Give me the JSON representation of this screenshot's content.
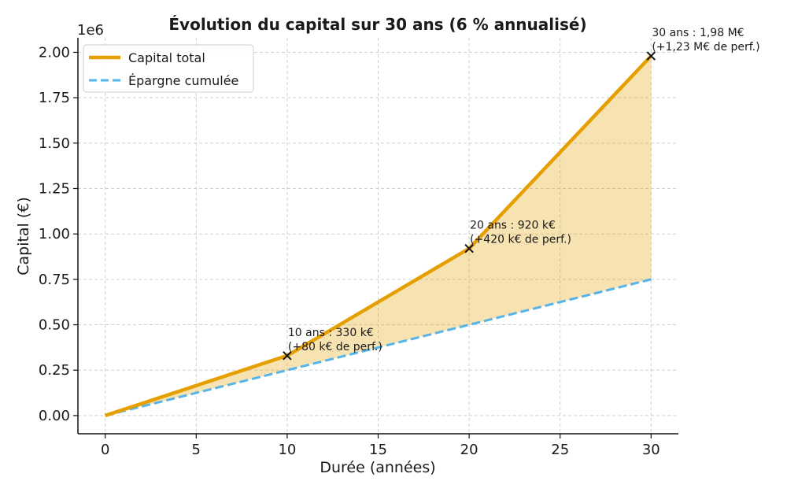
{
  "chart_data": {
    "type": "line",
    "title": "Évolution du capital sur 30 ans (6 % annualisé)",
    "xlabel": "Durée (années)",
    "ylabel": "Capital (€)",
    "y_scale_label": "1e6",
    "xlim": [
      -1.5,
      31.5
    ],
    "ylim": [
      -0.1,
      2.08
    ],
    "x_ticks": [
      0,
      5,
      10,
      15,
      20,
      25,
      30
    ],
    "x_tick_labels": [
      "0",
      "5",
      "10",
      "15",
      "20",
      "25",
      "30"
    ],
    "y_ticks": [
      0,
      0.25,
      0.5,
      0.75,
      1.0,
      1.25,
      1.5,
      1.75,
      2.0
    ],
    "y_tick_labels": [
      "0.00",
      "0.25",
      "0.50",
      "0.75",
      "1.00",
      "1.25",
      "1.50",
      "1.75",
      "2.00"
    ],
    "grid": true,
    "legend_position": "top-left",
    "series": [
      {
        "name": "Capital total",
        "style": "solid",
        "color": "#E69F00",
        "x": [
          0,
          10,
          20,
          30
        ],
        "y": [
          0,
          0.33,
          0.92,
          1.98
        ]
      },
      {
        "name": "Épargne cumulée",
        "style": "dashed",
        "color": "#56B4E9",
        "x": [
          0,
          10,
          20,
          30
        ],
        "y": [
          0,
          0.25,
          0.5,
          0.75
        ]
      }
    ],
    "fill_between": {
      "color": "#E69F00",
      "opacity": 0.3
    },
    "markers": [
      {
        "x": 10,
        "y": 0.33
      },
      {
        "x": 20,
        "y": 0.92
      },
      {
        "x": 30,
        "y": 1.98
      }
    ],
    "annotations": [
      {
        "x": 10,
        "y": 0.33,
        "lines": [
          "10 ans : 330 k€",
          "(+80 k€ de perf.)"
        ]
      },
      {
        "x": 20,
        "y": 0.92,
        "lines": [
          "20 ans : 920 k€",
          "(+420 k€ de perf.)"
        ]
      },
      {
        "x": 30,
        "y": 1.98,
        "lines": [
          "30 ans : 1,98 M€",
          "(+1,23 M€ de perf.)"
        ]
      }
    ]
  }
}
